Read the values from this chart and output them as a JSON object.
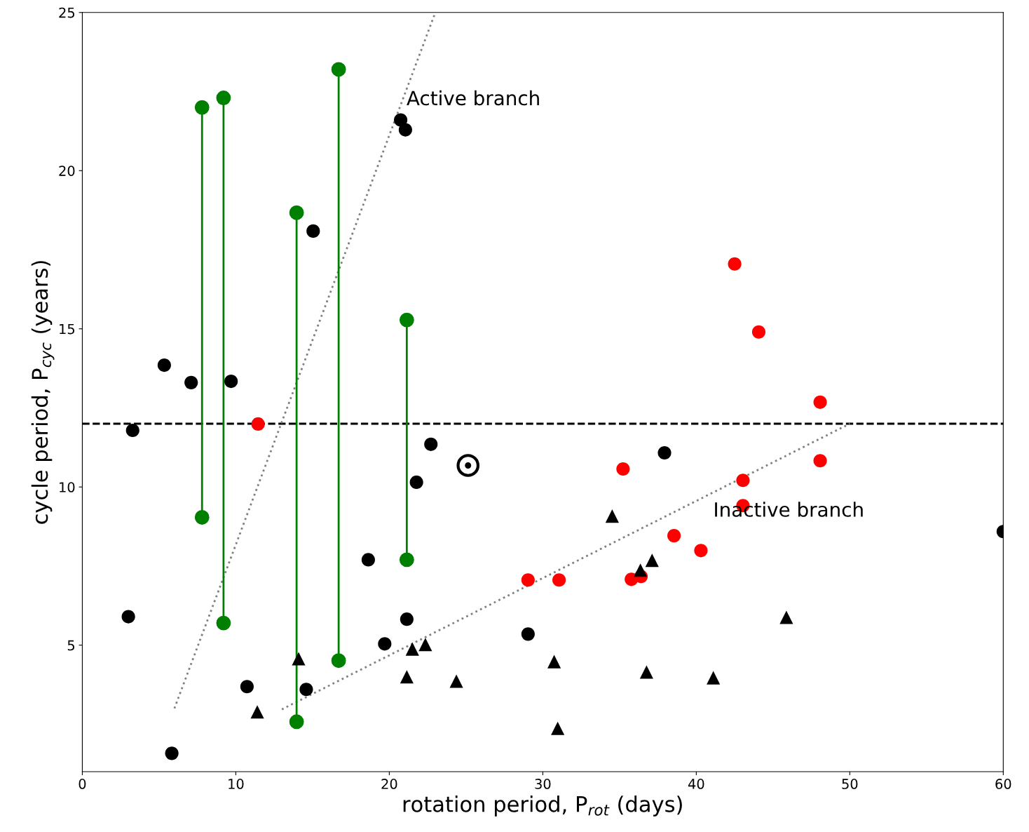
{
  "chart_data": {
    "type": "scatter",
    "xlabel": "rotation period, P$_{rot}$ (days)",
    "ylabel": "cycle period, P$_{cyc}$ (years)",
    "xlim": [
      0,
      60
    ],
    "ylim": [
      1,
      25
    ],
    "xticks": [
      0,
      10,
      20,
      30,
      40,
      50,
      60
    ],
    "yticks": [
      5,
      10,
      15,
      20,
      25
    ],
    "grid": false,
    "legend": false,
    "ref_lines": [
      {
        "axis": "y",
        "value": 12,
        "color": "#000000",
        "line_style": "dashed"
      }
    ],
    "annotations": [
      "Active branch",
      "Inactive branch"
    ],
    "series": [
      {
        "type": "line",
        "color": "#808080",
        "line_style": "dotted",
        "marker": "none",
        "x": [
          6.0,
          23.0
        ],
        "values": [
          3.0,
          25.0
        ]
      },
      {
        "type": "line",
        "color": "#808080",
        "line_style": "dotted",
        "marker": "none",
        "x": [
          13.0,
          50.0
        ],
        "values": [
          2.97,
          12.0
        ]
      },
      {
        "type": "line",
        "color": "#008000",
        "line_style": "solid",
        "marker": "circle",
        "x": [
          7.8,
          7.8
        ],
        "values": [
          22.0,
          9.04
        ]
      },
      {
        "type": "line",
        "color": "#008000",
        "line_style": "solid",
        "marker": "circle",
        "x": [
          9.2,
          9.2
        ],
        "values": [
          22.3,
          5.7
        ]
      },
      {
        "type": "line",
        "color": "#008000",
        "line_style": "solid",
        "marker": "circle",
        "x": [
          13.96,
          13.96
        ],
        "values": [
          18.67,
          2.58
        ]
      },
      {
        "type": "line",
        "color": "#008000",
        "line_style": "solid",
        "marker": "circle",
        "x": [
          16.7,
          16.7
        ],
        "values": [
          23.2,
          4.51
        ]
      },
      {
        "type": "line",
        "color": "#008000",
        "line_style": "solid",
        "marker": "circle",
        "x": [
          21.14,
          21.14
        ],
        "values": [
          15.28,
          7.7
        ]
      },
      {
        "color": "#000000",
        "marker": "circle",
        "x": [
          3.28,
          5.34,
          7.09,
          9.69,
          3.0,
          5.83,
          10.73,
          14.59,
          15.04,
          20.74,
          21.05,
          18.63,
          19.7,
          21.14,
          21.77,
          22.71,
          29.04,
          37.93,
          60.0
        ],
        "values": [
          11.79,
          13.85,
          13.3,
          13.34,
          5.9,
          1.58,
          3.69,
          3.6,
          18.09,
          21.6,
          21.29,
          7.7,
          5.04,
          5.82,
          10.15,
          11.35,
          5.35,
          11.08,
          8.59
        ]
      },
      {
        "color": "#ff0000",
        "marker": "circle",
        "x": [
          11.45,
          29.04,
          31.06,
          35.23,
          35.77,
          36.4,
          38.55,
          40.3,
          42.5,
          44.07,
          43.04,
          43.04,
          48.07,
          48.07
        ],
        "values": [
          11.99,
          7.06,
          7.06,
          10.57,
          7.08,
          7.17,
          8.46,
          7.99,
          17.05,
          14.9,
          10.21,
          9.41,
          12.68,
          10.83
        ]
      },
      {
        "color": "#000000",
        "marker": "triangle",
        "x": [
          11.4,
          14.09,
          21.14,
          21.5,
          22.35,
          24.37,
          30.74,
          30.97,
          34.52,
          36.36,
          37.12,
          36.76,
          41.11,
          45.87
        ],
        "values": [
          2.89,
          4.57,
          4.0,
          4.88,
          5.02,
          3.86,
          4.48,
          2.37,
          9.08,
          7.37,
          7.68,
          4.15,
          3.97,
          5.88
        ]
      },
      {
        "color": "#000000",
        "marker": "circle",
        "x": [
          25.13
        ],
        "values": [
          10.68
        ]
      }
    ]
  }
}
